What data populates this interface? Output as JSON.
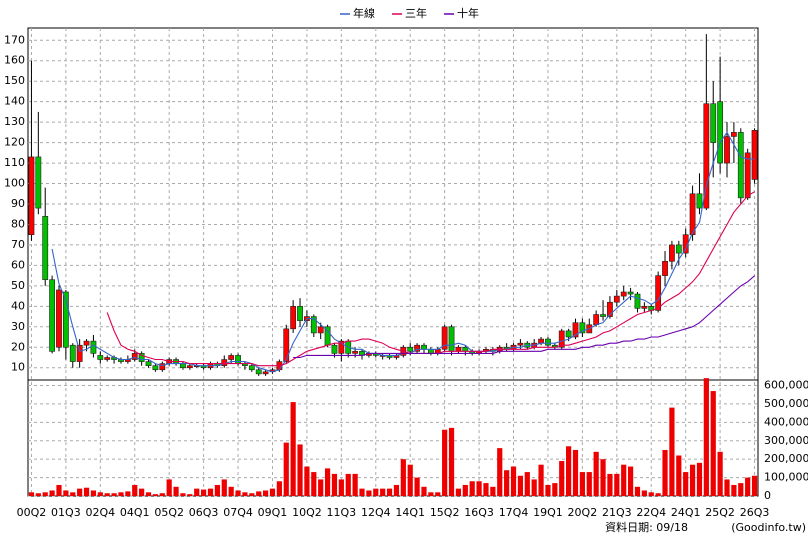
{
  "chart_data": {
    "type": "candlestick",
    "grid": true,
    "legend_loc": "top",
    "categories": [
      "00Q2",
      null,
      null,
      null,
      null,
      "01Q3",
      null,
      null,
      null,
      null,
      "02Q4",
      null,
      null,
      null,
      null,
      "04Q1",
      null,
      null,
      null,
      null,
      "05Q2",
      null,
      null,
      null,
      null,
      "06Q3",
      null,
      null,
      null,
      null,
      "07Q4",
      null,
      null,
      null,
      null,
      "09Q1",
      null,
      null,
      null,
      null,
      "10Q2",
      null,
      null,
      null,
      null,
      "11Q3",
      null,
      null,
      null,
      null,
      "12Q4",
      null,
      null,
      null,
      null,
      "14Q1",
      null,
      null,
      null,
      null,
      "15Q2",
      null,
      null,
      null,
      null,
      "16Q3",
      null,
      null,
      null,
      null,
      "17Q4",
      null,
      null,
      null,
      null,
      "19Q1",
      null,
      null,
      null,
      null,
      "20Q2",
      null,
      null,
      null,
      null,
      "21Q3",
      null,
      null,
      null,
      null,
      "22Q4",
      null,
      null,
      null,
      null,
      "24Q1",
      null,
      null,
      null,
      null,
      "25Q2",
      null,
      null,
      null,
      null,
      "26Q3"
    ],
    "open": [
      75,
      113,
      84,
      53,
      20,
      47,
      21,
      13,
      21,
      23,
      16,
      14,
      15,
      14,
      13,
      14,
      17,
      13,
      11,
      9,
      12,
      14,
      12,
      10,
      11,
      11,
      10,
      12,
      11,
      14,
      16,
      12,
      11,
      9,
      7,
      8,
      9,
      13,
      29,
      40,
      33,
      35,
      27,
      30,
      21,
      17,
      23,
      17,
      18,
      16,
      17,
      16,
      16,
      15,
      16,
      20,
      18,
      21,
      19,
      17,
      19,
      30,
      18,
      20,
      18,
      17,
      18,
      19,
      18,
      20,
      19,
      21,
      22,
      20,
      22,
      24,
      21,
      20,
      28,
      25,
      32,
      27,
      31,
      36,
      35,
      42,
      45,
      47,
      46,
      39,
      40,
      38,
      55,
      62,
      70,
      66,
      75,
      95,
      88,
      139,
      140,
      110,
      123,
      125,
      93,
      102
    ],
    "high": [
      160,
      135,
      98,
      55,
      50,
      48,
      22,
      24,
      24,
      26,
      18,
      16,
      16,
      15,
      16,
      19,
      18,
      14,
      12,
      13,
      15,
      15,
      13,
      12,
      12,
      12,
      13,
      13,
      16,
      17,
      17,
      13,
      12,
      10,
      9,
      10,
      14,
      31,
      43,
      44,
      38,
      36,
      32,
      31,
      22,
      24,
      24,
      20,
      19,
      18,
      18,
      17,
      17,
      17,
      21,
      22,
      22,
      22,
      20,
      20,
      31,
      31,
      21,
      21,
      19,
      19,
      20,
      20,
      21,
      22,
      22,
      24,
      23,
      24,
      25,
      25,
      22,
      29,
      29,
      34,
      34,
      34,
      38,
      43,
      45,
      48,
      50,
      49,
      47,
      42,
      41,
      57,
      67,
      72,
      72,
      78,
      99,
      105,
      173,
      150,
      162,
      130,
      130,
      127,
      117,
      127
    ],
    "low": [
      72,
      85,
      50,
      17,
      18,
      14,
      10,
      10,
      18,
      15,
      12,
      13,
      12,
      12,
      12,
      13,
      11,
      10,
      8,
      8,
      11,
      11,
      9,
      9,
      10,
      9,
      9,
      10,
      10,
      12,
      11,
      9,
      8,
      6,
      6,
      7,
      8,
      12,
      27,
      30,
      30,
      25,
      24,
      20,
      15,
      13,
      15,
      15,
      14,
      15,
      15,
      14,
      14,
      14,
      15,
      16,
      17,
      17,
      16,
      16,
      18,
      16,
      17,
      16,
      16,
      16,
      17,
      16,
      17,
      18,
      18,
      19,
      19,
      19,
      21,
      20,
      19,
      19,
      23,
      24,
      25,
      27,
      30,
      33,
      34,
      40,
      43,
      43,
      37,
      37,
      36,
      37,
      50,
      58,
      60,
      64,
      72,
      85,
      87,
      103,
      105,
      103,
      110,
      90,
      92,
      100
    ],
    "close": [
      113,
      88,
      53,
      18,
      48,
      20,
      13,
      21,
      23,
      17,
      14,
      15,
      14,
      13,
      14,
      17,
      13,
      11,
      9,
      12,
      14,
      12,
      10,
      11,
      11,
      10,
      12,
      11,
      14,
      16,
      12,
      11,
      9,
      7,
      8,
      9,
      13,
      29,
      40,
      33,
      35,
      27,
      30,
      21,
      17,
      23,
      17,
      18,
      16,
      17,
      16,
      16,
      15,
      16,
      20,
      18,
      21,
      19,
      17,
      19,
      30,
      18,
      20,
      18,
      17,
      18,
      19,
      18,
      20,
      19,
      21,
      22,
      20,
      22,
      24,
      21,
      20,
      28,
      25,
      32,
      27,
      31,
      36,
      35,
      42,
      45,
      47,
      46,
      39,
      40,
      38,
      55,
      62,
      70,
      66,
      75,
      95,
      88,
      139,
      120,
      110,
      123,
      125,
      93,
      115,
      126
    ],
    "up_color": "#ff0000",
    "down_color": "#00c000",
    "ylim": [
      4,
      176
    ],
    "yticks": [
      10,
      20,
      30,
      40,
      50,
      60,
      70,
      80,
      90,
      100,
      110,
      120,
      130,
      140,
      150,
      160,
      170
    ],
    "series": [
      {
        "name": "年線",
        "color": "#3366cc",
        "values": [
          null,
          null,
          null,
          68,
          51,
          43,
          30,
          18,
          19,
          21,
          19,
          17,
          15,
          14,
          14,
          15,
          14,
          14,
          12,
          11,
          12,
          12,
          12,
          12,
          11,
          11,
          11,
          11,
          12,
          13,
          13,
          13,
          12,
          10,
          9,
          8,
          9,
          14,
          22,
          28,
          34,
          34,
          31,
          28,
          24,
          22,
          20,
          19,
          19,
          17,
          17,
          16,
          16,
          16,
          17,
          17,
          19,
          19,
          19,
          19,
          21,
          21,
          22,
          21,
          18,
          18,
          18,
          18,
          19,
          19,
          20,
          20,
          21,
          21,
          22,
          22,
          22,
          23,
          24,
          26,
          28,
          29,
          31,
          32,
          36,
          39,
          42,
          45,
          44,
          43,
          41,
          43,
          49,
          56,
          63,
          68,
          76,
          81,
          99,
          110,
          120,
          125,
          119,
          113,
          112,
          112
        ]
      },
      {
        "name": "三年",
        "color": "#dd0055",
        "values": [
          null,
          null,
          null,
          null,
          null,
          null,
          null,
          null,
          null,
          null,
          null,
          37,
          28,
          21,
          19,
          18,
          16,
          15,
          14,
          14,
          13,
          13,
          13,
          12,
          12,
          12,
          12,
          12,
          12,
          12,
          12,
          12,
          12,
          11,
          11,
          11,
          11,
          12,
          14,
          16,
          18,
          19,
          20,
          21,
          22,
          22,
          23,
          23,
          24,
          24,
          23,
          22,
          20,
          19,
          18,
          17,
          17,
          17,
          17,
          17,
          18,
          18,
          18,
          18,
          18,
          18,
          18,
          19,
          19,
          19,
          19,
          19,
          19,
          20,
          20,
          20,
          20,
          21,
          21,
          22,
          23,
          24,
          25,
          27,
          28,
          30,
          32,
          34,
          36,
          37,
          38,
          39,
          42,
          44,
          46,
          49,
          52,
          56,
          62,
          68,
          74,
          80,
          86,
          90,
          94,
          96
        ]
      },
      {
        "name": "十年",
        "color": "#6a00b0",
        "values": [
          null,
          null,
          null,
          null,
          null,
          null,
          null,
          null,
          null,
          null,
          null,
          null,
          null,
          null,
          null,
          null,
          null,
          null,
          null,
          null,
          null,
          null,
          null,
          null,
          null,
          null,
          null,
          null,
          null,
          null,
          null,
          null,
          null,
          null,
          null,
          null,
          null,
          null,
          15,
          15,
          16,
          16,
          16,
          16,
          16,
          16,
          16,
          16,
          16,
          17,
          17,
          17,
          17,
          17,
          17,
          17,
          17,
          17,
          17,
          17,
          17,
          17,
          17,
          17,
          17,
          17,
          17,
          17,
          18,
          18,
          18,
          18,
          18,
          18,
          18,
          19,
          19,
          19,
          19,
          19,
          20,
          20,
          21,
          21,
          22,
          22,
          23,
          23,
          24,
          24,
          25,
          25,
          26,
          27,
          28,
          29,
          30,
          32,
          35,
          38,
          41,
          44,
          47,
          50,
          52,
          55
        ]
      }
    ],
    "volume": {
      "color": "#ee0000",
      "values": [
        20000,
        15000,
        20000,
        30000,
        60000,
        30000,
        20000,
        40000,
        45000,
        30000,
        20000,
        15000,
        15000,
        20000,
        25000,
        60000,
        40000,
        20000,
        10000,
        15000,
        90000,
        50000,
        15000,
        10000,
        40000,
        35000,
        40000,
        60000,
        90000,
        50000,
        30000,
        20000,
        15000,
        25000,
        30000,
        40000,
        80000,
        290000,
        510000,
        280000,
        160000,
        130000,
        90000,
        150000,
        120000,
        90000,
        120000,
        120000,
        40000,
        30000,
        40000,
        40000,
        40000,
        60000,
        200000,
        170000,
        100000,
        50000,
        20000,
        20000,
        360000,
        370000,
        40000,
        60000,
        80000,
        80000,
        70000,
        50000,
        260000,
        140000,
        160000,
        110000,
        130000,
        90000,
        170000,
        60000,
        70000,
        190000,
        270000,
        250000,
        130000,
        130000,
        240000,
        200000,
        120000,
        120000,
        170000,
        160000,
        50000,
        30000,
        20000,
        15000,
        250000,
        480000,
        220000,
        130000,
        170000,
        180000,
        640000,
        570000,
        240000,
        90000,
        60000,
        70000,
        100000,
        110000
      ],
      "ylim": [
        0,
        630000
      ],
      "yticks": [
        0,
        {
          "value": 100000,
          "label": "100,000"
        },
        {
          "value": 200000,
          "label": "200,000"
        },
        {
          "value": 300000,
          "label": "300,000"
        },
        {
          "value": 400000,
          "label": "400,000"
        },
        {
          "value": 500000,
          "label": "500,000"
        },
        {
          "value": 600000,
          "label": "600,000"
        }
      ]
    },
    "note": "資料日期: 09/18",
    "source": "(Goodinfo.tw)"
  }
}
